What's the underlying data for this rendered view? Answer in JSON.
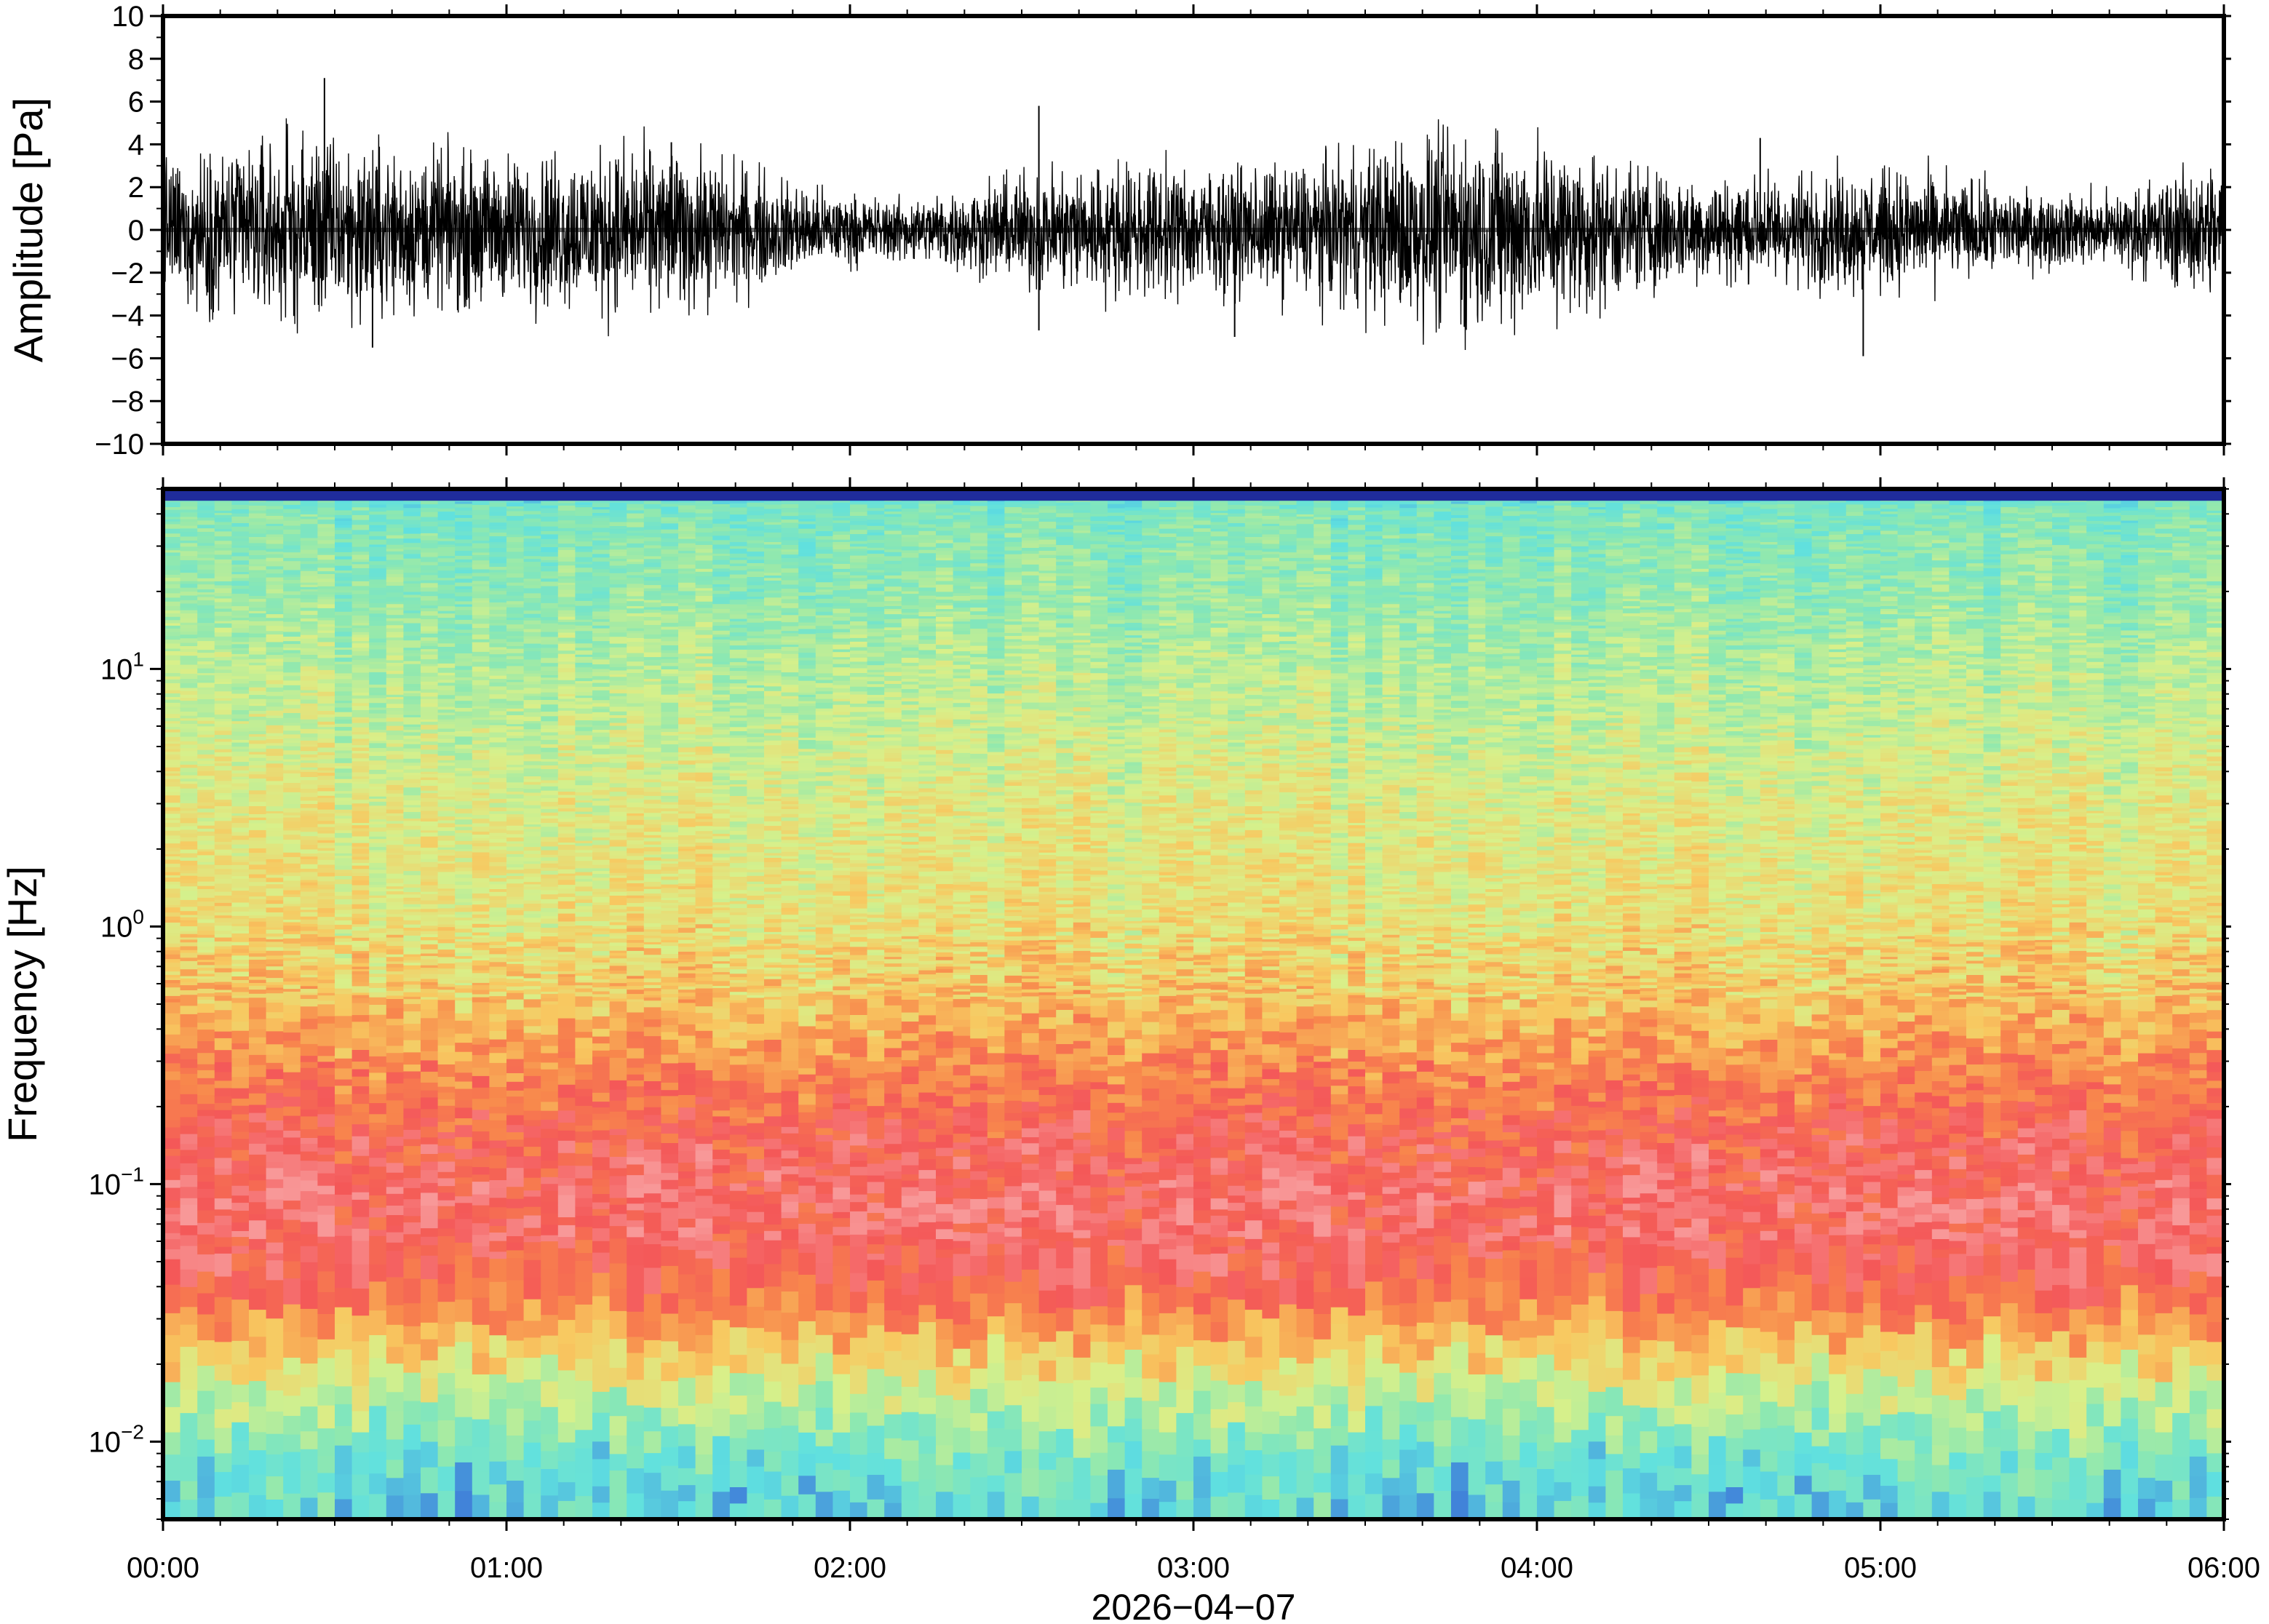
{
  "chart_data": [
    {
      "type": "line",
      "ylabel": "Amplitude [Pa]",
      "ylim": [
        -10,
        10
      ],
      "yticks": [
        10,
        8,
        6,
        4,
        2,
        0,
        -2,
        -4,
        -6,
        -8,
        -10
      ],
      "ytick_labels": [
        "10",
        "8",
        "6",
        "4",
        "2",
        "0",
        "−2",
        "−4",
        "−6",
        "−8",
        "−10"
      ],
      "xlim_hours": [
        0,
        6
      ],
      "noise_envelope_pa": 2.5,
      "spikes": [
        {
          "hour": 0.47,
          "value": 7.1
        },
        {
          "hour": 0.61,
          "value": -5.5
        },
        {
          "hour": 1.48,
          "value": 4.1
        },
        {
          "hour": 2.55,
          "value": 5.8
        },
        {
          "hour": 2.55,
          "value": -4.7
        },
        {
          "hour": 3.12,
          "value": -5.0
        },
        {
          "hour": 4.65,
          "value": 4.3
        },
        {
          "hour": 4.95,
          "value": -5.9
        }
      ],
      "color": "#000000"
    },
    {
      "type": "heatmap",
      "ylabel": "Frequency [Hz]",
      "yscale": "log",
      "ylim_hz": [
        0.005,
        50
      ],
      "yticks": [
        {
          "base": "10",
          "exp": "1",
          "value": 10
        },
        {
          "base": "10",
          "exp": "0",
          "value": 1
        },
        {
          "base": "10",
          "exp": "−1",
          "value": 0.1
        },
        {
          "base": "10",
          "exp": "−2",
          "value": 0.01
        }
      ],
      "x_ticks": [
        "00:00",
        "01:00",
        "02:00",
        "03:00",
        "04:00",
        "05:00",
        "06:00"
      ],
      "xlabel": "2026−04−07",
      "xlim_hours": [
        0,
        6
      ],
      "colormap": [
        "#1a1f8f",
        "#3a6fd8",
        "#5fe0e0",
        "#8ee8b0",
        "#d8f08a",
        "#f8c860",
        "#f8884c",
        "#f45858",
        "#f89898"
      ],
      "power_profile": [
        {
          "freq_hz": 50,
          "level": 0.02
        },
        {
          "freq_hz": 45,
          "level": 0.3
        },
        {
          "freq_hz": 40,
          "level": 0.34
        },
        {
          "freq_hz": 20,
          "level": 0.38
        },
        {
          "freq_hz": 10,
          "level": 0.44
        },
        {
          "freq_hz": 3,
          "level": 0.52
        },
        {
          "freq_hz": 1,
          "level": 0.56
        },
        {
          "freq_hz": 0.5,
          "level": 0.63
        },
        {
          "freq_hz": 0.3,
          "level": 0.74
        },
        {
          "freq_hz": 0.15,
          "level": 0.86
        },
        {
          "freq_hz": 0.08,
          "level": 0.92
        },
        {
          "freq_hz": 0.04,
          "level": 0.86
        },
        {
          "freq_hz": 0.025,
          "level": 0.7
        },
        {
          "freq_hz": 0.015,
          "level": 0.5
        },
        {
          "freq_hz": 0.008,
          "level": 0.3
        },
        {
          "freq_hz": 0.005,
          "level": 0.26
        }
      ]
    }
  ]
}
